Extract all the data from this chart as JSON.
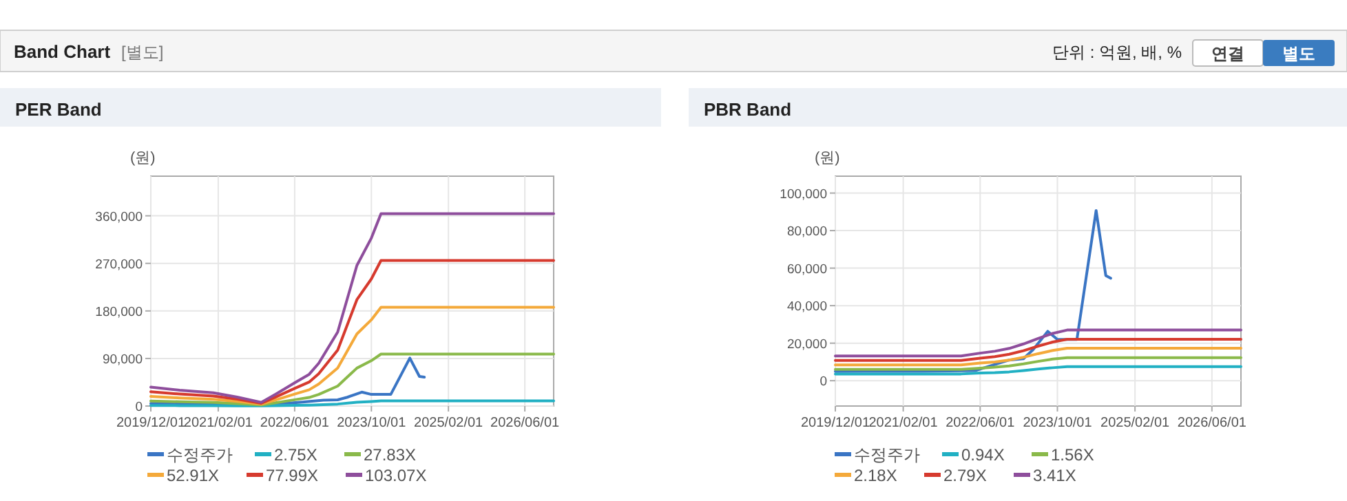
{
  "chart_data": [
    {
      "type": "other",
      "title": "Band Chart",
      "subtitle": "[별도]",
      "annotations": [
        "단위 : 억원, 배, %",
        "연결",
        "별도"
      ]
    },
    {
      "type": "line",
      "title": "PER Band",
      "ylabel": "(원)",
      "grid": true,
      "legend": "bottom",
      "xlim": [
        "2019-12-01",
        "2026-12-01"
      ],
      "ylim": [
        0,
        435000
      ],
      "xticks": [
        {
          "value": "2019-12-01",
          "label": "2019/12/01"
        },
        {
          "value": "2021-02-01",
          "label": "2021/02/01"
        },
        {
          "value": "2022-06-01",
          "label": "2022/06/01"
        },
        {
          "value": "2023-10-01",
          "label": "2023/10/01"
        },
        {
          "value": "2025-02-01",
          "label": "2025/02/01"
        },
        {
          "value": "2026-06-01",
          "label": "2026/06/01"
        }
      ],
      "yticks": [
        0,
        {
          "value": 90000,
          "label": "90,000"
        },
        {
          "value": 180000,
          "label": "180,000"
        },
        {
          "value": 270000,
          "label": "270,000"
        },
        {
          "value": 360000,
          "label": "360,000"
        }
      ],
      "series": [
        {
          "name": "수정주가",
          "color": "#3a75c4",
          "x": [
            "2019-12",
            "2020-06",
            "2021-06",
            "2022-05",
            "2022-08",
            "2022-12",
            "2023-03",
            "2023-05",
            "2023-08",
            "2023-10",
            "2024-02",
            "2024-06",
            "2024-08",
            "2024-09"
          ],
          "values": [
            4900,
            5000,
            5000,
            5400,
            7800,
            11000,
            11700,
            16600,
            26300,
            22000,
            22000,
            90700,
            56000,
            54600
          ]
        },
        {
          "name": "2.75X",
          "color": "#21b0c3",
          "x": [
            "2019-12",
            "2020-06",
            "2021-01",
            "2021-06",
            "2021-11",
            "2022-02",
            "2022-06",
            "2022-09",
            "2022-11",
            "2023-03",
            "2023-07",
            "2023-10",
            "2023-12",
            "2026-12"
          ],
          "values": [
            950,
            800,
            670,
            450,
            190,
            600,
            1170,
            1600,
            2160,
            3740,
            7100,
            8500,
            9700,
            9700
          ]
        },
        {
          "name": "27.83X",
          "color": "#8ab94a",
          "x": [
            "2019-12",
            "2020-06",
            "2021-01",
            "2021-06",
            "2021-11",
            "2022-02",
            "2022-06",
            "2022-09",
            "2022-11",
            "2023-03",
            "2023-07",
            "2023-10",
            "2023-12",
            "2026-12"
          ],
          "values": [
            9600,
            8100,
            6800,
            4600,
            1900,
            6100,
            11900,
            16200,
            21900,
            37800,
            71800,
            85900,
            98300,
            98300
          ]
        },
        {
          "name": "52.91X",
          "color": "#f4a93a",
          "x": [
            "2019-12",
            "2020-06",
            "2021-01",
            "2021-06",
            "2021-11",
            "2022-02",
            "2022-06",
            "2022-09",
            "2022-11",
            "2023-03",
            "2023-07",
            "2023-10",
            "2023-12",
            "2026-12"
          ],
          "values": [
            18300,
            15400,
            12800,
            8700,
            3600,
            11600,
            22600,
            30800,
            41600,
            71900,
            136500,
            163200,
            186800,
            186800
          ]
        },
        {
          "name": "77.99X",
          "color": "#d63a2e",
          "x": [
            "2019-12",
            "2020-06",
            "2021-01",
            "2021-06",
            "2021-11",
            "2022-02",
            "2022-06",
            "2022-09",
            "2022-11",
            "2023-03",
            "2023-07",
            "2023-10",
            "2023-12",
            "2026-12"
          ],
          "values": [
            27000,
            22700,
            18900,
            12900,
            5300,
            17100,
            33300,
            45400,
            61300,
            105900,
            201300,
            240600,
            275400,
            275400
          ]
        },
        {
          "name": "103.07X",
          "color": "#8e4e9c",
          "x": [
            "2019-12",
            "2020-06",
            "2021-01",
            "2021-06",
            "2021-11",
            "2022-02",
            "2022-06",
            "2022-09",
            "2022-11",
            "2023-03",
            "2023-07",
            "2023-10",
            "2023-12",
            "2026-12"
          ],
          "values": [
            35700,
            30000,
            25000,
            17000,
            7000,
            22600,
            44000,
            60000,
            81000,
            140000,
            266000,
            318000,
            364000,
            364000
          ]
        }
      ]
    },
    {
      "type": "line",
      "title": "PBR Band",
      "ylabel": "(원)",
      "grid": true,
      "legend": "bottom",
      "xlim": [
        "2019-12-01",
        "2026-12-01"
      ],
      "ylim": [
        -13500,
        109000
      ],
      "xticks": [
        {
          "value": "2019-12-01",
          "label": "2019/12/01"
        },
        {
          "value": "2021-02-01",
          "label": "2021/02/01"
        },
        {
          "value": "2022-06-01",
          "label": "2022/06/01"
        },
        {
          "value": "2023-10-01",
          "label": "2023/10/01"
        },
        {
          "value": "2025-02-01",
          "label": "2025/02/01"
        },
        {
          "value": "2026-06-01",
          "label": "2026/06/01"
        }
      ],
      "yticks": [
        0,
        {
          "value": 20000,
          "label": "20,000"
        },
        {
          "value": 40000,
          "label": "40,000"
        },
        {
          "value": 60000,
          "label": "60,000"
        },
        {
          "value": 80000,
          "label": "80,000"
        },
        {
          "value": 100000,
          "label": "100,000"
        }
      ],
      "series": [
        {
          "name": "수정주가",
          "color": "#3a75c4",
          "x": [
            "2019-12",
            "2020-06",
            "2021-06",
            "2022-05",
            "2022-08",
            "2022-12",
            "2023-03",
            "2023-05",
            "2023-08",
            "2023-10",
            "2024-02",
            "2024-06",
            "2024-08",
            "2024-09"
          ],
          "values": [
            4900,
            5000,
            5000,
            5400,
            7800,
            11000,
            11700,
            16600,
            26300,
            22000,
            22000,
            90700,
            56000,
            54600
          ]
        },
        {
          "name": "0.94X",
          "color": "#21b0c3",
          "x": [
            "2019-12",
            "2022-02",
            "2022-06",
            "2022-09",
            "2022-12",
            "2023-03",
            "2023-06",
            "2023-09",
            "2023-12",
            "2026-12"
          ],
          "values": [
            3600,
            3600,
            4100,
            4300,
            4700,
            5400,
            6200,
            6900,
            7500,
            7500
          ]
        },
        {
          "name": "1.56X",
          "color": "#8ab94a",
          "x": [
            "2019-12",
            "2022-02",
            "2022-06",
            "2022-09",
            "2022-12",
            "2023-03",
            "2023-06",
            "2023-09",
            "2023-12",
            "2026-12"
          ],
          "values": [
            6000,
            6000,
            6700,
            7200,
            7900,
            9000,
            10300,
            11500,
            12300,
            12300
          ]
        },
        {
          "name": "2.18X",
          "color": "#f4a93a",
          "x": [
            "2019-12",
            "2022-02",
            "2022-06",
            "2022-09",
            "2022-12",
            "2023-03",
            "2023-06",
            "2023-09",
            "2023-12",
            "2026-12"
          ],
          "values": [
            8400,
            8400,
            9400,
            10000,
            11000,
            12500,
            14400,
            16100,
            17300,
            17300
          ]
        },
        {
          "name": "2.79X",
          "color": "#d63a2e",
          "x": [
            "2019-12",
            "2022-02",
            "2022-06",
            "2022-09",
            "2022-12",
            "2023-03",
            "2023-06",
            "2023-09",
            "2023-12",
            "2026-12"
          ],
          "values": [
            10800,
            10800,
            12000,
            12800,
            14100,
            16000,
            18400,
            20600,
            22100,
            22100
          ]
        },
        {
          "name": "3.41X",
          "color": "#8e4e9c",
          "x": [
            "2019-12",
            "2022-02",
            "2022-06",
            "2022-09",
            "2022-12",
            "2023-03",
            "2023-06",
            "2023-09",
            "2023-12",
            "2026-12"
          ],
          "values": [
            13200,
            13200,
            14700,
            15700,
            17200,
            19600,
            22500,
            25200,
            27000,
            27000
          ]
        }
      ]
    }
  ]
}
